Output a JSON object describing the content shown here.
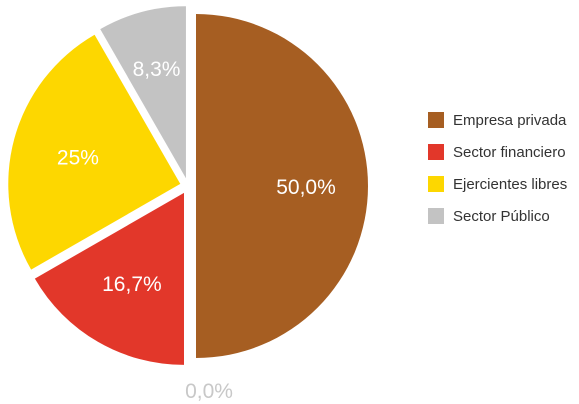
{
  "chart_data": {
    "type": "pie",
    "categories": [
      "Empresa privada",
      "Sector financiero",
      "Ejercientes libres",
      "Sector Público"
    ],
    "values": [
      50.0,
      16.7,
      25.0,
      8.3
    ],
    "value_labels": [
      "50,0%",
      "16,7%",
      "25%",
      "8,3%"
    ],
    "extra_label": "0,0%",
    "colors": [
      "#a65e22",
      "#e2372a",
      "#fdd700",
      "#c3c3c3"
    ],
    "legend_position": "right",
    "exploded": true
  }
}
